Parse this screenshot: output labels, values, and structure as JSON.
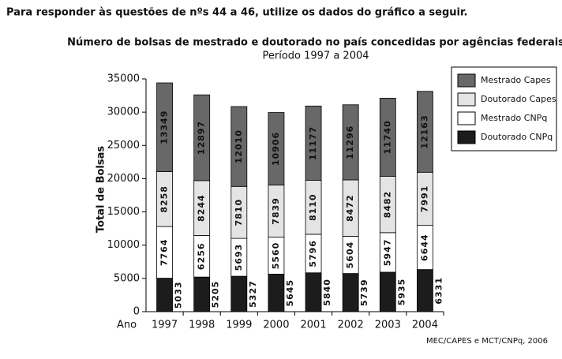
{
  "header": "Para responder às questões de nºs 44 a 46, utilize os dados do gráfico a seguir.",
  "chart_data": {
    "type": "bar",
    "stacked": true,
    "title": "Número de bolsas de mestrado e doutorado no país concedidas  por agências federais",
    "subtitle": "Período 1997 a 2004",
    "y_label": "Total de Bolsas",
    "x_label": "Ano",
    "source": "MEC/CAPES e MCT/CNPq, 2006",
    "categories": [
      "1997",
      "1998",
      "1999",
      "2000",
      "2001",
      "2002",
      "2003",
      "2004"
    ],
    "series": [
      {
        "name": "Doutorado CNPq",
        "color": "#1c1c1c",
        "values": [
          5033,
          5205,
          5327,
          5645,
          5840,
          5739,
          5935,
          6331
        ]
      },
      {
        "name": "Mestrado CNPq",
        "color": "#ffffff",
        "values": [
          7764,
          6256,
          5693,
          5560,
          5796,
          5604,
          5947,
          6644
        ]
      },
      {
        "name": "Doutorado Capes",
        "color": "#e4e4e4",
        "values": [
          8258,
          8244,
          7810,
          7839,
          8110,
          8472,
          8482,
          7991
        ]
      },
      {
        "name": "Mestrado Capes",
        "color": "#686868",
        "values": [
          13349,
          12897,
          12010,
          10906,
          11177,
          11296,
          11740,
          12163
        ]
      }
    ],
    "ylim": [
      0,
      35000
    ],
    "yticks": [
      0,
      5000,
      10000,
      15000,
      20000,
      25000,
      30000,
      35000
    ],
    "legend": "right"
  }
}
